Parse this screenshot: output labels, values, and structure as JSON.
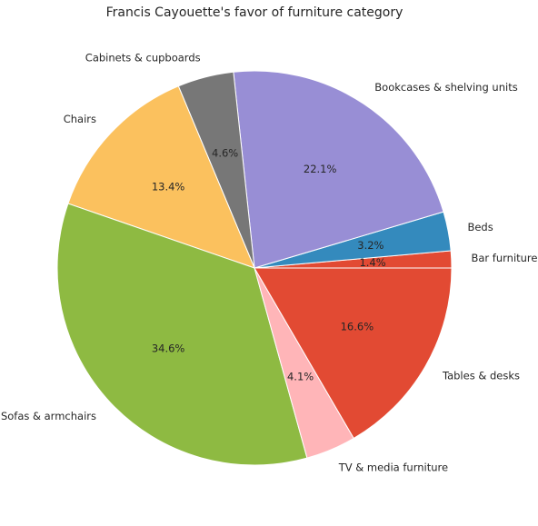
{
  "chart_data": {
    "type": "pie",
    "title": "Francis Cayouette's favor of furniture category",
    "slices": [
      {
        "label": "Bar furniture",
        "value": 1.4,
        "pct_label": "1.4%",
        "color": "#E24A33"
      },
      {
        "label": "Beds",
        "value": 3.2,
        "pct_label": "3.2%",
        "color": "#348ABD"
      },
      {
        "label": "Bookcases & shelving units",
        "value": 22.1,
        "pct_label": "22.1%",
        "color": "#988ED5"
      },
      {
        "label": "Cabinets & cupboards",
        "value": 4.6,
        "pct_label": "4.6%",
        "color": "#777777"
      },
      {
        "label": "Chairs",
        "value": 13.4,
        "pct_label": "13.4%",
        "color": "#FBC15E"
      },
      {
        "label": "Sofas & armchairs",
        "value": 34.6,
        "pct_label": "34.6%",
        "color": "#8EBA42"
      },
      {
        "label": "TV & media furniture",
        "value": 4.1,
        "pct_label": "4.1%",
        "color": "#FFB5B8"
      },
      {
        "label": "Tables & desks",
        "value": 16.6,
        "pct_label": "16.6%",
        "color": "#E24A33"
      }
    ],
    "start_angle": 0,
    "direction": "counterclockwise",
    "legend": "none"
  }
}
